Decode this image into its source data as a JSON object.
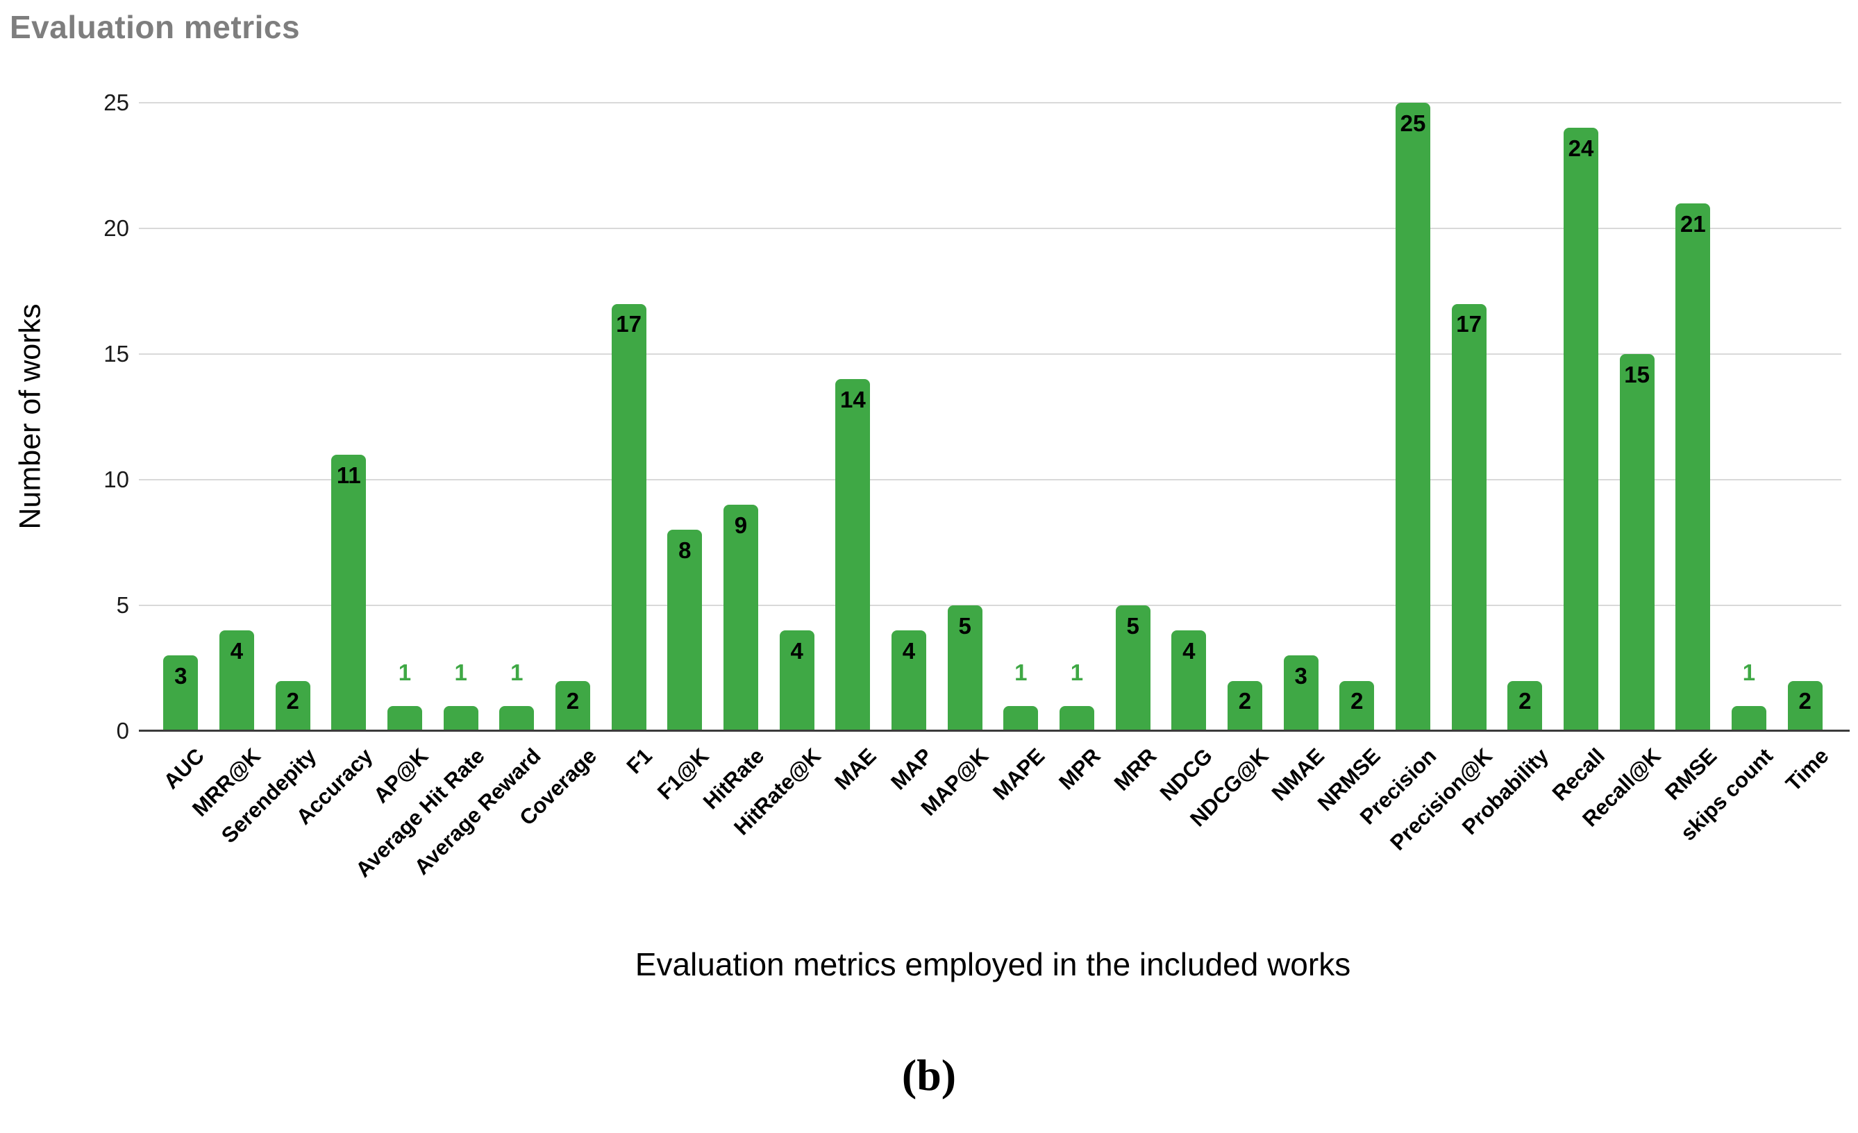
{
  "caption": "(b)",
  "chart_data": {
    "type": "bar",
    "title": "Evaluation metrics",
    "xlabel": "Evaluation metrics employed in the included works",
    "ylabel": "Number of works",
    "categories": [
      "AUC",
      "MRR@K",
      "Serendepity",
      "Accuracy",
      "AP@K",
      "Average Hit Rate",
      "Average Reward",
      "Coverage",
      "F1",
      "F1@K",
      "HitRate",
      "HitRate@K",
      "MAE",
      "MAP",
      "MAP@K",
      "MAPE",
      "MPR",
      "MRR",
      "NDCG",
      "NDCG@K",
      "NMAE",
      "NRMSE",
      "Precision",
      "Precision@K",
      "Probability",
      "Recall",
      "Recall@K",
      "RMSE",
      "skips count",
      "Time"
    ],
    "values": [
      3,
      4,
      2,
      11,
      1,
      1,
      1,
      2,
      17,
      8,
      9,
      4,
      14,
      4,
      5,
      1,
      1,
      5,
      4,
      2,
      3,
      2,
      25,
      17,
      2,
      24,
      15,
      21,
      1,
      2
    ],
    "ylim": [
      0,
      25
    ],
    "yticks": [
      0,
      5,
      10,
      15,
      20,
      25
    ],
    "grid": true,
    "legend_position": "none",
    "bar_color": "#3fa845",
    "inside_label_color": "#000000",
    "outside_label_color": "#3fa845",
    "title_color": "#7e7e7e",
    "gridline_color": "#d9d9d9",
    "axis_line_color": "#3b3b3b"
  }
}
